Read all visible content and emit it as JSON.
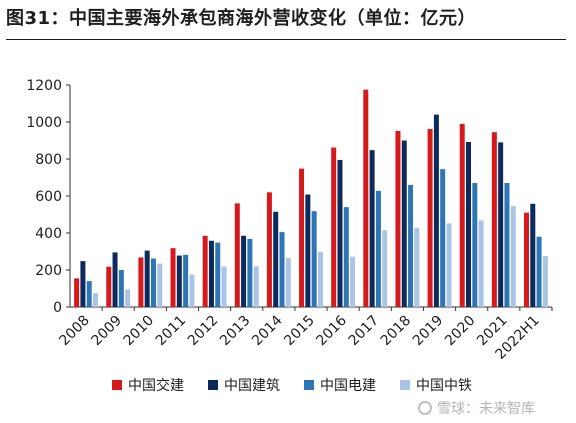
{
  "title": "图31：中国主要海外承包商海外营收变化（单位：亿元）",
  "watermark": "雪球：未来智库",
  "chart_data": {
    "type": "bar",
    "categories": [
      "2008",
      "2009",
      "2010",
      "2011",
      "2012",
      "2013",
      "2014",
      "2015",
      "2016",
      "2017",
      "2018",
      "2019",
      "2020",
      "2021",
      "2022H1"
    ],
    "ylim": [
      0,
      1200
    ],
    "yticks": [
      0,
      200,
      400,
      600,
      800,
      1000,
      1200
    ],
    "grid": false,
    "legend_position": "bottom",
    "series": [
      {
        "name": "中国交建",
        "color": "#d7191c",
        "values": [
          155,
          218,
          268,
          318,
          385,
          560,
          620,
          748,
          862,
          1175,
          952,
          962,
          990,
          945,
          510
        ]
      },
      {
        "name": "中国建筑",
        "color": "#0d2a5c",
        "values": [
          248,
          295,
          305,
          278,
          358,
          385,
          515,
          608,
          795,
          848,
          900,
          1040,
          892,
          890,
          558
        ]
      },
      {
        "name": "中国电建",
        "color": "#2e75b6",
        "values": [
          140,
          200,
          262,
          282,
          348,
          368,
          405,
          518,
          540,
          628,
          660,
          745,
          670,
          670,
          380
        ]
      },
      {
        "name": "中国中铁",
        "color": "#a9c4e4",
        "values": [
          75,
          95,
          235,
          175,
          218,
          220,
          265,
          298,
          272,
          415,
          428,
          452,
          468,
          545,
          275
        ]
      }
    ]
  }
}
